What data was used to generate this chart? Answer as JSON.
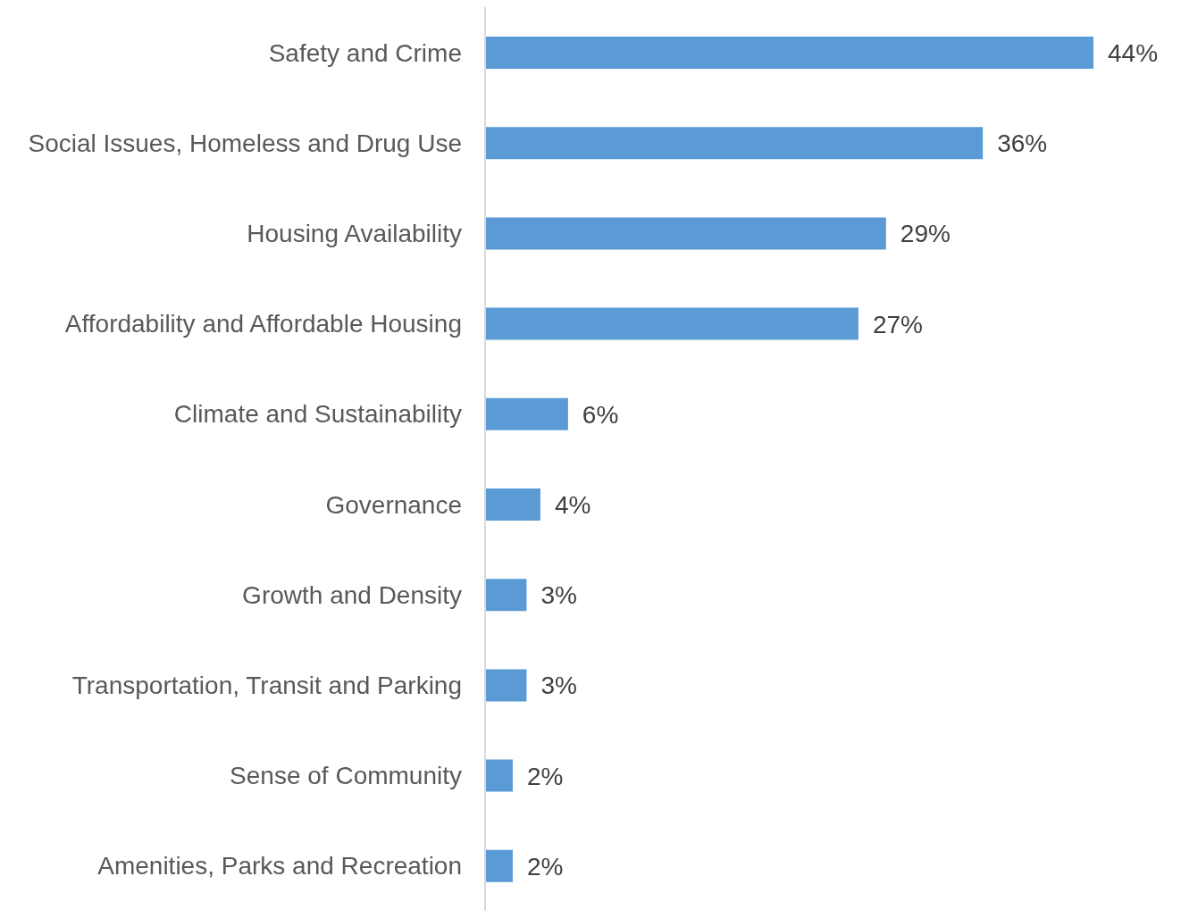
{
  "chart_data": {
    "type": "bar",
    "orientation": "horizontal",
    "categories": [
      "Safety and Crime",
      "Social Issues, Homeless and Drug Use",
      "Housing Availability",
      "Affordability and Affordable Housing",
      "Climate and Sustainability",
      "Governance",
      "Growth and Density",
      "Transportation, Transit and Parking",
      "Sense of Community",
      "Amenities, Parks and Recreation"
    ],
    "values": [
      44,
      36,
      29,
      27,
      6,
      4,
      3,
      3,
      2,
      2
    ],
    "value_labels": [
      "44%",
      "36%",
      "29%",
      "27%",
      "6%",
      "4%",
      "3%",
      "3%",
      "2%",
      "2%"
    ],
    "color": "#5b9bd5",
    "tick_labels": "y"
  }
}
